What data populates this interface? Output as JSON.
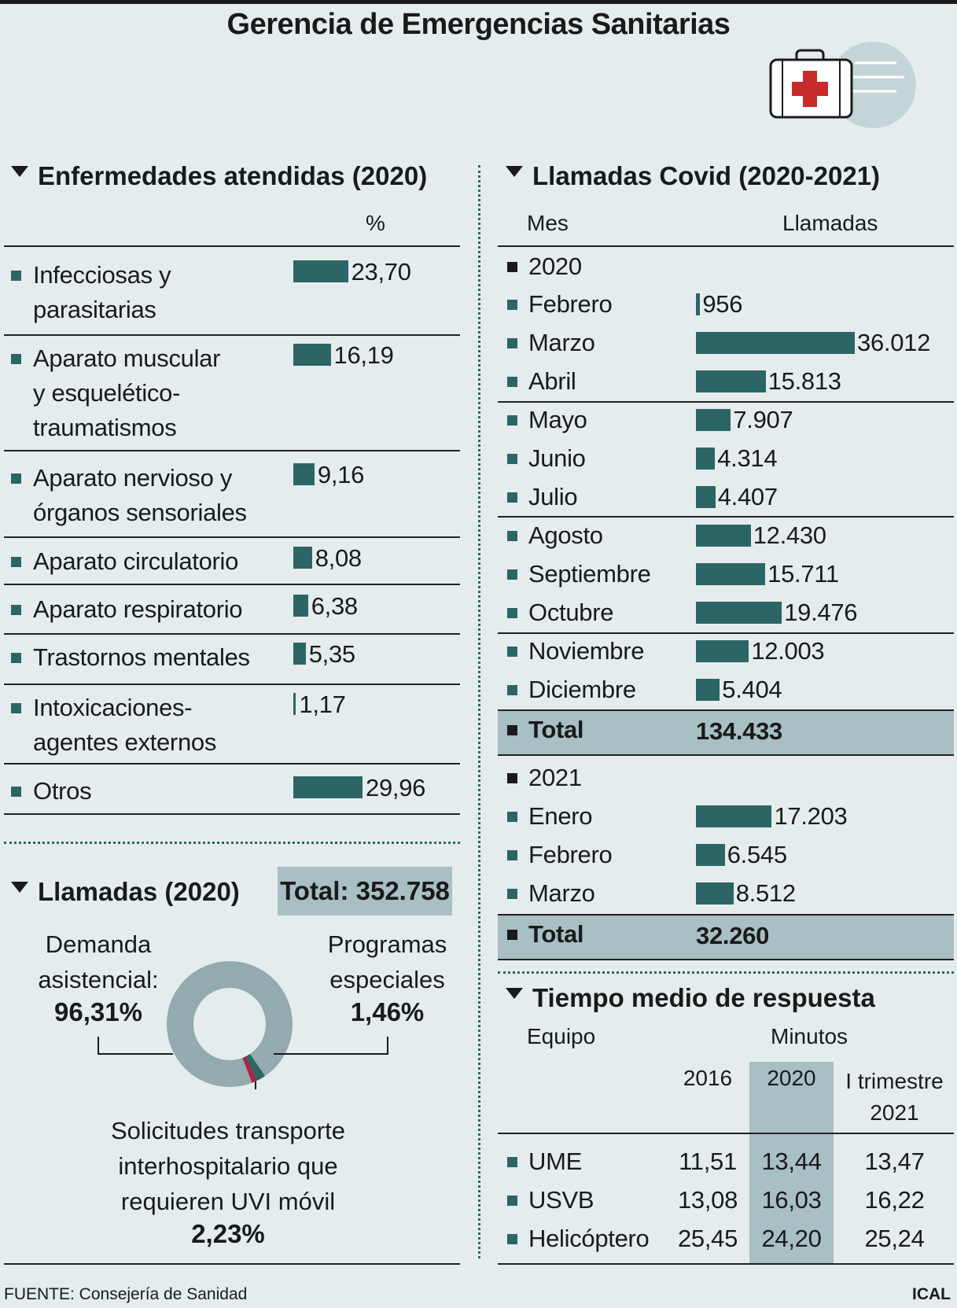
{
  "title": "Gerencia de Emergencias Sanitarias",
  "icon": "first-aid-kit-icon",
  "colors": {
    "bar": "#2c6566",
    "band": "#a8bfc3",
    "donut_main": "#93aaae",
    "donut_red": "#a8234a"
  },
  "enfermedades": {
    "title": "Enfermedades atendidas (2020)",
    "unit_header": "%",
    "rows": [
      {
        "label": "Infecciosas y\nparasitarias",
        "value": "23,70",
        "num": 23.7
      },
      {
        "label": "Aparato muscular\ny esquelético-\ntraumatismos",
        "value": "16,19",
        "num": 16.19
      },
      {
        "label": "Aparato nervioso y\nórganos sensoriales",
        "value": "9,16",
        "num": 9.16
      },
      {
        "label": "Aparato circulatorio",
        "value": "8,08",
        "num": 8.08
      },
      {
        "label": "Aparato respiratorio",
        "value": "6,38",
        "num": 6.38
      },
      {
        "label": "Trastornos mentales",
        "value": "5,35",
        "num": 5.35
      },
      {
        "label": "Intoxicaciones-\nagentes externos",
        "value": "1,17",
        "num": 1.17
      },
      {
        "label": "Otros",
        "value": "29,96",
        "num": 29.96
      }
    ]
  },
  "llamadas2020": {
    "title": "Llamadas (2020)",
    "total": "Total: 352.758",
    "demanda_label": "Demanda\nasistencial:",
    "demanda_value": "96,31%",
    "programas_label": "Programas\nespeciales",
    "programas_value": "1,46%",
    "solicitudes_label": "Solicitudes transporte\ninterhospitalario que\nrequieren UVI móvil",
    "solicitudes_value": "2,23%"
  },
  "covid": {
    "title": "Llamadas Covid (2020-2021)",
    "col_mes": "Mes",
    "col_llamadas": "Llamadas",
    "year2020": "2020",
    "months2020": [
      {
        "label": "Febrero",
        "value": "956",
        "num": 956
      },
      {
        "label": "Marzo",
        "value": "36.012",
        "num": 36012
      },
      {
        "label": "Abril",
        "value": "15.813",
        "num": 15813
      },
      {
        "label": "Mayo",
        "value": "7.907",
        "num": 7907
      },
      {
        "label": "Junio",
        "value": "4.314",
        "num": 4314
      },
      {
        "label": "Julio",
        "value": "4.407",
        "num": 4407
      },
      {
        "label": "Agosto",
        "value": "12.430",
        "num": 12430
      },
      {
        "label": "Septiembre",
        "value": "15.711",
        "num": 15711
      },
      {
        "label": "Octubre",
        "value": "19.476",
        "num": 19476
      },
      {
        "label": "Noviembre",
        "value": "12.003",
        "num": 12003
      },
      {
        "label": "Diciembre",
        "value": "5.404",
        "num": 5404
      }
    ],
    "total_label": "Total",
    "total2020": "134.433",
    "year2021": "2021",
    "months2021": [
      {
        "label": "Enero",
        "value": "17.203",
        "num": 17203
      },
      {
        "label": "Febrero",
        "value": "6.545",
        "num": 6545
      },
      {
        "label": "Marzo",
        "value": "8.512",
        "num": 8512
      }
    ],
    "total2021": "32.260"
  },
  "tiempo": {
    "title": "Tiempo medio de respuesta",
    "col_equipo": "Equipo",
    "col_minutos": "Minutos",
    "cols": [
      "2016",
      "2020",
      "I trimestre\n2021"
    ],
    "rows": [
      {
        "label": "UME",
        "values": [
          "11,51",
          "13,44",
          "13,47"
        ]
      },
      {
        "label": "USVB",
        "values": [
          "13,08",
          "16,03",
          "16,22"
        ]
      },
      {
        "label": "Helicóptero",
        "values": [
          "25,45",
          "24,20",
          "25,24"
        ]
      }
    ]
  },
  "footer": {
    "source": "FUENTE: Consejería de Sanidad",
    "credit": "ICAL"
  },
  "chart_data": [
    {
      "type": "bar",
      "title": "Enfermedades atendidas (2020)",
      "ylabel": "%",
      "categories": [
        "Infecciosas y parasitarias",
        "Aparato muscular y esquelético-traumatismos",
        "Aparato nervioso y órganos sensoriales",
        "Aparato circulatorio",
        "Aparato respiratorio",
        "Trastornos mentales",
        "Intoxicaciones-agentes externos",
        "Otros"
      ],
      "values": [
        23.7,
        16.19,
        9.16,
        8.08,
        6.38,
        5.35,
        1.17,
        29.96
      ]
    },
    {
      "type": "pie",
      "title": "Llamadas (2020)",
      "categories": [
        "Demanda asistencial",
        "Programas especiales",
        "Solicitudes transporte interhospitalario que requieren UVI móvil"
      ],
      "values": [
        96.31,
        1.46,
        2.23
      ]
    },
    {
      "type": "bar",
      "title": "Llamadas Covid (2020-2021)",
      "categories": [
        "Febrero 2020",
        "Marzo 2020",
        "Abril 2020",
        "Mayo 2020",
        "Junio 2020",
        "Julio 2020",
        "Agosto 2020",
        "Septiembre 2020",
        "Octubre 2020",
        "Noviembre 2020",
        "Diciembre 2020",
        "Enero 2021",
        "Febrero 2021",
        "Marzo 2021"
      ],
      "values": [
        956,
        36012,
        15813,
        7907,
        4314,
        4407,
        12430,
        15711,
        19476,
        12003,
        5404,
        17203,
        6545,
        8512
      ]
    },
    {
      "type": "table",
      "title": "Tiempo medio de respuesta",
      "columns": [
        "2016",
        "2020",
        "I trimestre 2021"
      ],
      "rows": [
        {
          "label": "UME",
          "values": [
            11.51,
            13.44,
            13.47
          ]
        },
        {
          "label": "USVB",
          "values": [
            13.08,
            16.03,
            16.22
          ]
        },
        {
          "label": "Helicóptero",
          "values": [
            25.45,
            24.2,
            25.24
          ]
        }
      ]
    }
  ]
}
